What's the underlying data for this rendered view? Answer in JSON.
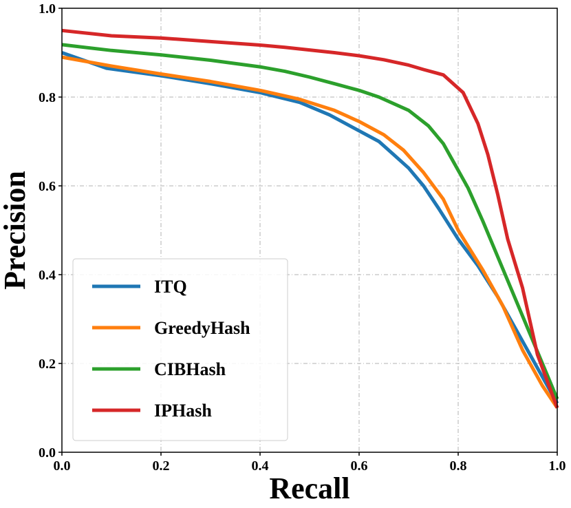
{
  "chart_data": {
    "type": "line",
    "title": "",
    "xlabel": "Recall",
    "ylabel": "Precision",
    "xlim": [
      0.0,
      1.0
    ],
    "ylim": [
      0.0,
      1.0
    ],
    "x_ticks": [
      0.0,
      0.2,
      0.4,
      0.6,
      0.8,
      1.0
    ],
    "y_ticks": [
      0.0,
      0.2,
      0.4,
      0.6,
      0.8,
      1.0
    ],
    "x_tick_labels": [
      "0.0",
      "0.2",
      "0.4",
      "0.6",
      "0.8",
      "1.0"
    ],
    "y_tick_labels": [
      "0.0",
      "0.2",
      "0.4",
      "0.6",
      "0.8",
      "1.0"
    ],
    "grid": true,
    "legend_position": "lower-left",
    "series": [
      {
        "name": "ITQ",
        "color": "#1f77b4",
        "x": [
          0.0,
          0.09,
          0.2,
          0.3,
          0.4,
          0.48,
          0.54,
          0.59,
          0.64,
          0.67,
          0.7,
          0.73,
          0.76,
          0.8,
          0.84,
          0.88,
          0.92,
          0.96,
          1.0
        ],
        "y": [
          0.9,
          0.865,
          0.848,
          0.83,
          0.81,
          0.788,
          0.76,
          0.73,
          0.7,
          0.67,
          0.64,
          0.6,
          0.55,
          0.48,
          0.42,
          0.35,
          0.27,
          0.19,
          0.11
        ]
      },
      {
        "name": "GreedyHash",
        "color": "#ff7f0e",
        "x": [
          0.0,
          0.1,
          0.2,
          0.3,
          0.4,
          0.48,
          0.55,
          0.6,
          0.65,
          0.69,
          0.73,
          0.77,
          0.8,
          0.85,
          0.89,
          0.93,
          0.97,
          1.0
        ],
        "y": [
          0.89,
          0.87,
          0.852,
          0.835,
          0.815,
          0.795,
          0.77,
          0.745,
          0.715,
          0.68,
          0.63,
          0.57,
          0.5,
          0.41,
          0.33,
          0.23,
          0.15,
          0.1
        ]
      },
      {
        "name": "CIBHash",
        "color": "#2ca02c",
        "x": [
          0.0,
          0.1,
          0.2,
          0.3,
          0.4,
          0.45,
          0.5,
          0.55,
          0.6,
          0.64,
          0.7,
          0.74,
          0.77,
          0.79,
          0.82,
          0.85,
          0.88,
          0.91,
          0.94,
          0.97,
          1.0
        ],
        "y": [
          0.918,
          0.905,
          0.895,
          0.883,
          0.868,
          0.858,
          0.845,
          0.83,
          0.815,
          0.8,
          0.77,
          0.735,
          0.695,
          0.655,
          0.595,
          0.52,
          0.44,
          0.36,
          0.28,
          0.2,
          0.12
        ]
      },
      {
        "name": "IPHash",
        "color": "#d62728",
        "x": [
          0.0,
          0.1,
          0.2,
          0.3,
          0.4,
          0.45,
          0.5,
          0.55,
          0.6,
          0.65,
          0.7,
          0.73,
          0.77,
          0.81,
          0.84,
          0.86,
          0.88,
          0.9,
          0.93,
          0.96,
          1.0
        ],
        "y": [
          0.95,
          0.938,
          0.933,
          0.925,
          0.917,
          0.912,
          0.906,
          0.9,
          0.893,
          0.884,
          0.872,
          0.862,
          0.85,
          0.81,
          0.74,
          0.67,
          0.58,
          0.48,
          0.37,
          0.22,
          0.1
        ]
      }
    ]
  }
}
